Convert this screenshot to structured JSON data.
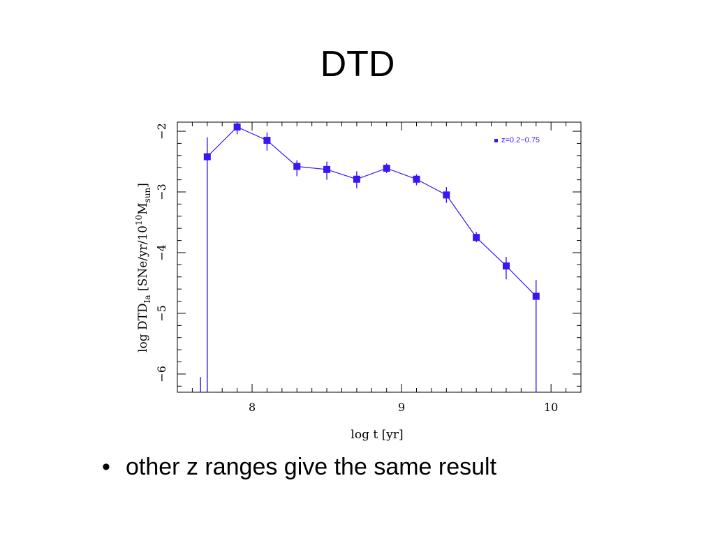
{
  "slide": {
    "title": "DTD",
    "bullets": [
      "other z ranges give the same result"
    ]
  },
  "chart_data": {
    "type": "scatter",
    "xlabel": "log  t  [yr]",
    "ylabel_parts": [
      "log  DTD",
      "Ia",
      "  [SNe/yr/10",
      "10",
      "M",
      "sun",
      "]"
    ],
    "xlim": [
      7.5,
      10.2
    ],
    "ylim": [
      -6.3,
      -1.85
    ],
    "x_ticks": [
      8,
      9,
      10
    ],
    "y_ticks": [
      -2,
      -3,
      -4,
      -5,
      -6
    ],
    "tick_labels_x": [
      "8",
      "9",
      "10"
    ],
    "tick_labels_y": [
      "−2",
      "−3",
      "−4",
      "−5",
      "−6"
    ],
    "grid": false,
    "legend_position": "top-right",
    "series": [
      {
        "name": "z=0.2−0.75",
        "color": "#3b16f2",
        "x": [
          7.7,
          7.9,
          8.1,
          8.3,
          8.5,
          8.7,
          8.9,
          9.1,
          9.3,
          9.5,
          9.7,
          9.9
        ],
        "y": [
          -2.42,
          -1.93,
          -2.15,
          -2.58,
          -2.63,
          -2.79,
          -2.61,
          -2.79,
          -3.05,
          -3.75,
          -4.22,
          -4.72
        ],
        "yerr_low": [
          -6.3,
          -2.05,
          -2.32,
          -2.74,
          -2.8,
          -2.94,
          -2.69,
          -2.89,
          -3.18,
          -3.83,
          -4.44,
          -6.3
        ],
        "yerr_high": [
          -2.1,
          -1.8,
          -2.02,
          -2.48,
          -2.5,
          -2.66,
          -2.53,
          -2.71,
          -2.92,
          -3.66,
          -4.07,
          -4.45
        ]
      }
    ]
  }
}
